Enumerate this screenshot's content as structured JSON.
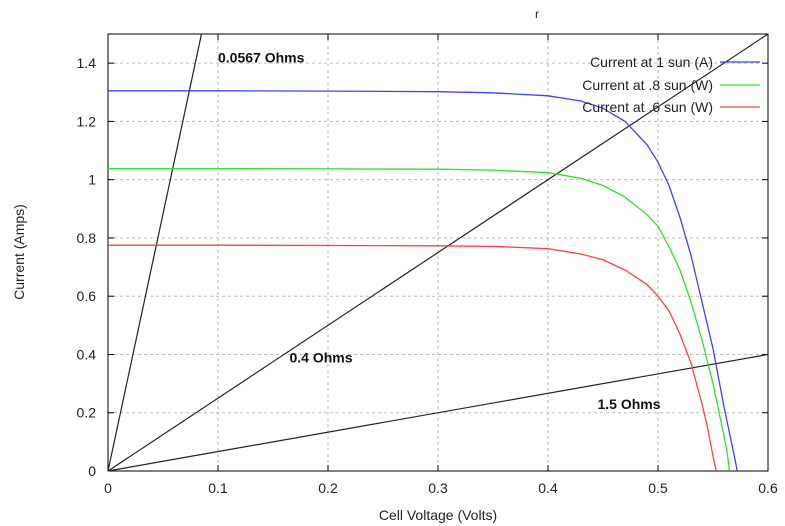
{
  "chart_data": {
    "type": "line",
    "title": "r",
    "xlabel": "Cell Voltage (Volts)",
    "ylabel": "Current (Amps)",
    "xlim": [
      0,
      0.6
    ],
    "ylim": [
      0,
      1.5
    ],
    "grid": true,
    "legend_position": "top-right",
    "xticks": [
      "0",
      "0.1",
      "0.2",
      "0.3",
      "0.4",
      "0.5",
      "0.6"
    ],
    "yticks": [
      "0",
      "0.2",
      "0.4",
      "0.6",
      "0.8",
      "1",
      "1.2",
      "1.4"
    ],
    "series": [
      {
        "name": "Current at 1 sun (A)",
        "color": "#4040ff",
        "x": [
          0,
          0.1,
          0.2,
          0.3,
          0.35,
          0.4,
          0.43,
          0.45,
          0.47,
          0.49,
          0.5,
          0.51,
          0.52,
          0.53,
          0.54,
          0.55,
          0.56,
          0.565,
          0.57,
          0.572
        ],
        "y": [
          1.305,
          1.305,
          1.304,
          1.302,
          1.298,
          1.288,
          1.27,
          1.245,
          1.2,
          1.12,
          1.06,
          0.98,
          0.87,
          0.74,
          0.58,
          0.42,
          0.22,
          0.13,
          0.04,
          0
        ]
      },
      {
        "name": "Current at .8 sun (W)",
        "color": "#30e030",
        "x": [
          0,
          0.1,
          0.2,
          0.3,
          0.35,
          0.4,
          0.43,
          0.45,
          0.47,
          0.49,
          0.5,
          0.51,
          0.52,
          0.53,
          0.54,
          0.55,
          0.555,
          0.56,
          0.563,
          0.565
        ],
        "y": [
          1.038,
          1.038,
          1.037,
          1.036,
          1.033,
          1.024,
          1.005,
          0.98,
          0.94,
          0.88,
          0.84,
          0.77,
          0.69,
          0.58,
          0.45,
          0.3,
          0.21,
          0.12,
          0.06,
          0
        ]
      },
      {
        "name": "Current at .6 sun (W)",
        "color": "#ff4040",
        "x": [
          0,
          0.1,
          0.2,
          0.3,
          0.35,
          0.4,
          0.43,
          0.45,
          0.47,
          0.49,
          0.5,
          0.51,
          0.52,
          0.53,
          0.54,
          0.545,
          0.55,
          0.553
        ],
        "y": [
          0.775,
          0.775,
          0.774,
          0.773,
          0.771,
          0.763,
          0.745,
          0.725,
          0.69,
          0.64,
          0.6,
          0.55,
          0.47,
          0.37,
          0.23,
          0.15,
          0.05,
          0
        ]
      }
    ],
    "load_lines": [
      {
        "label": "0.0567 Ohms",
        "x": [
          0,
          0.085
        ],
        "y": [
          0,
          1.5
        ]
      },
      {
        "label": "0.4 Ohms",
        "x": [
          0,
          0.6
        ],
        "y": [
          0,
          1.5
        ]
      },
      {
        "label": "1.5 Ohms",
        "x": [
          0,
          0.6
        ],
        "y": [
          0,
          0.4
        ]
      }
    ],
    "annotations": [
      {
        "text": "0.0567 Ohms",
        "x": 0.1,
        "y": 1.42
      },
      {
        "text": "0.4 Ohms",
        "x": 0.165,
        "y": 0.39
      },
      {
        "text": "1.5 Ohms",
        "x": 0.445,
        "y": 0.23
      }
    ]
  }
}
